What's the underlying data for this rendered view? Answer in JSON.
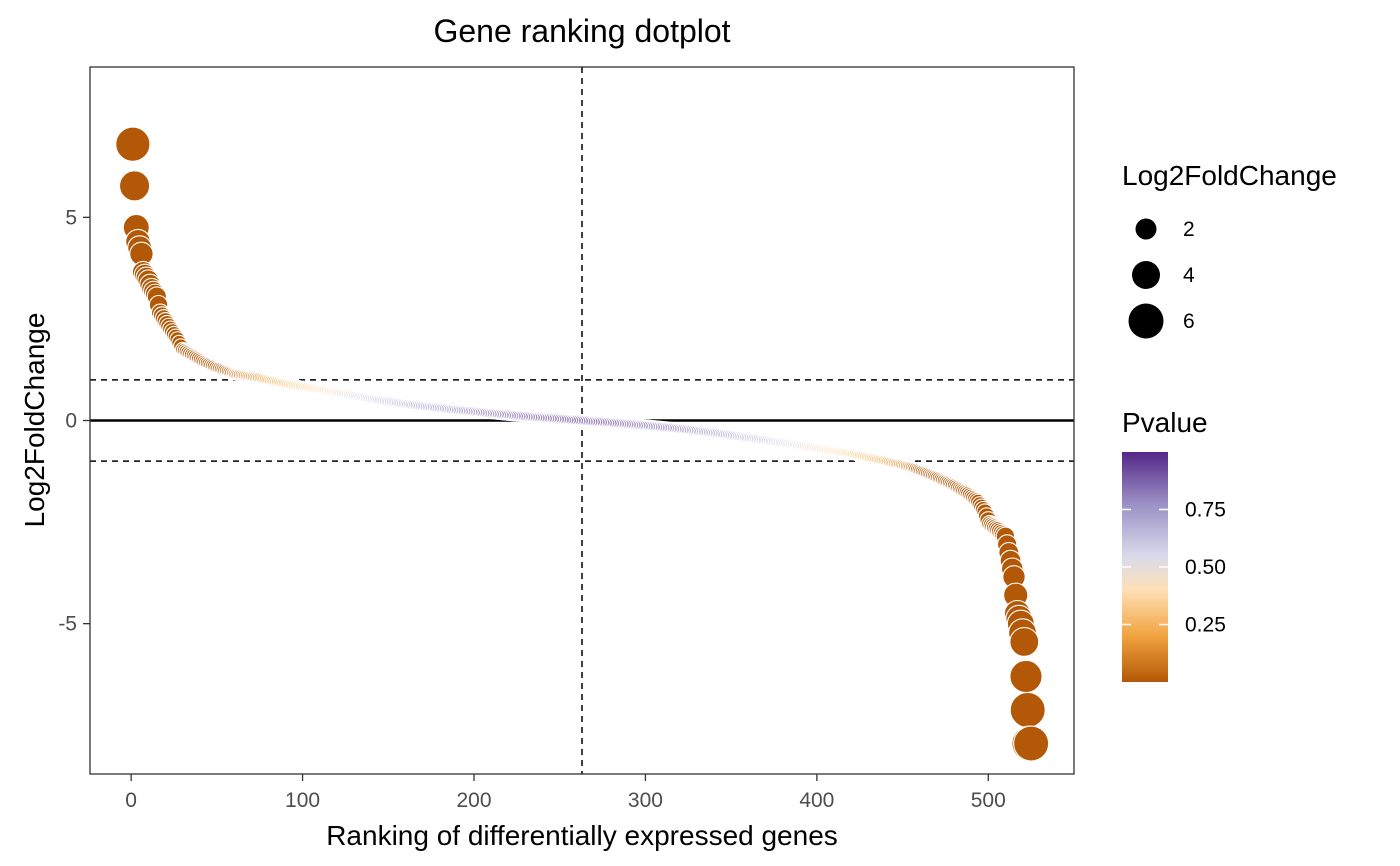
{
  "chart_data": {
    "type": "scatter",
    "title": "Gene ranking dotplot",
    "xlabel": "Ranking of differentially expressed genes",
    "ylabel": "Log2FoldChange",
    "xlim": [
      -24,
      550
    ],
    "ylim": [
      -8.7,
      8.7
    ],
    "x_ticks": [
      0,
      100,
      200,
      300,
      400,
      500
    ],
    "y_ticks": [
      -5,
      0,
      5
    ],
    "x_tick_labels": [
      "0",
      "100",
      "200",
      "300",
      "400",
      "500"
    ],
    "y_tick_labels": [
      "-5",
      "0",
      "5"
    ],
    "grid": false,
    "reference_lines": {
      "horizontal_solid": [
        0
      ],
      "horizontal_dashed": [
        1,
        -1
      ],
      "vertical_dashed": [
        263
      ]
    },
    "n_points": 525,
    "points": [
      {
        "x": 1,
        "y": 6.8
      },
      {
        "x": 3,
        "y": 4.75
      },
      {
        "x": 4,
        "y": 4.4
      },
      {
        "x": 6,
        "y": 4.1
      },
      {
        "x": 7,
        "y": 3.65
      },
      {
        "x": 10,
        "y": 3.45
      },
      {
        "x": 12,
        "y": 3.25
      },
      {
        "x": 15,
        "y": 3.05
      },
      {
        "x": 17,
        "y": 2.65
      },
      {
        "x": 20,
        "y": 2.45
      },
      {
        "x": 23,
        "y": 2.25
      },
      {
        "x": 27,
        "y": 2.0
      },
      {
        "x": 30,
        "y": 1.75
      },
      {
        "x": 36,
        "y": 1.6
      },
      {
        "x": 42,
        "y": 1.45
      },
      {
        "x": 50,
        "y": 1.3
      },
      {
        "x": 60,
        "y": 1.15
      },
      {
        "x": 75,
        "y": 1.05
      },
      {
        "x": 90,
        "y": 0.9
      },
      {
        "x": 105,
        "y": 0.8
      },
      {
        "x": 125,
        "y": 0.65
      },
      {
        "x": 145,
        "y": 0.5
      },
      {
        "x": 165,
        "y": 0.38
      },
      {
        "x": 185,
        "y": 0.28
      },
      {
        "x": 205,
        "y": 0.2
      },
      {
        "x": 225,
        "y": 0.12
      },
      {
        "x": 245,
        "y": 0.06
      },
      {
        "x": 263,
        "y": 0.0
      },
      {
        "x": 280,
        "y": -0.05
      },
      {
        "x": 300,
        "y": -0.12
      },
      {
        "x": 320,
        "y": -0.2
      },
      {
        "x": 340,
        "y": -0.3
      },
      {
        "x": 360,
        "y": -0.42
      },
      {
        "x": 380,
        "y": -0.55
      },
      {
        "x": 400,
        "y": -0.68
      },
      {
        "x": 420,
        "y": -0.82
      },
      {
        "x": 440,
        "y": -1.0
      },
      {
        "x": 455,
        "y": -1.15
      },
      {
        "x": 470,
        "y": -1.4
      },
      {
        "x": 480,
        "y": -1.6
      },
      {
        "x": 488,
        "y": -1.8
      },
      {
        "x": 494,
        "y": -2.0
      },
      {
        "x": 498,
        "y": -2.25
      },
      {
        "x": 501,
        "y": -2.55
      },
      {
        "x": 506,
        "y": -2.7
      },
      {
        "x": 510,
        "y": -2.85
      },
      {
        "x": 513,
        "y": -3.45
      },
      {
        "x": 515,
        "y": -3.85
      },
      {
        "x": 517,
        "y": -4.75
      },
      {
        "x": 519,
        "y": -5.0
      },
      {
        "x": 521,
        "y": -5.45
      },
      {
        "x": 522,
        "y": -6.3
      },
      {
        "x": 524,
        "y": -7.95
      }
    ],
    "legend": {
      "placement": "right",
      "size": {
        "title": "Log2FoldChange",
        "entries": [
          {
            "label": "2",
            "value": 2
          },
          {
            "label": "4",
            "value": 4
          },
          {
            "label": "6",
            "value": 6
          }
        ]
      },
      "color": {
        "title": "Pvalue",
        "range": [
          0.0,
          1.0
        ],
        "ticks": [
          {
            "label": "0.75",
            "value": 0.75
          },
          {
            "label": "0.50",
            "value": 0.5
          },
          {
            "label": "0.25",
            "value": 0.25
          }
        ],
        "stops": [
          {
            "value": 0.0,
            "color": "#b35806"
          },
          {
            "value": 0.2,
            "color": "#f1a340"
          },
          {
            "value": 0.4,
            "color": "#fee0b6"
          },
          {
            "value": 0.55,
            "color": "#d8daeb"
          },
          {
            "value": 0.78,
            "color": "#998ec3"
          },
          {
            "value": 1.0,
            "color": "#542788"
          }
        ]
      }
    }
  }
}
